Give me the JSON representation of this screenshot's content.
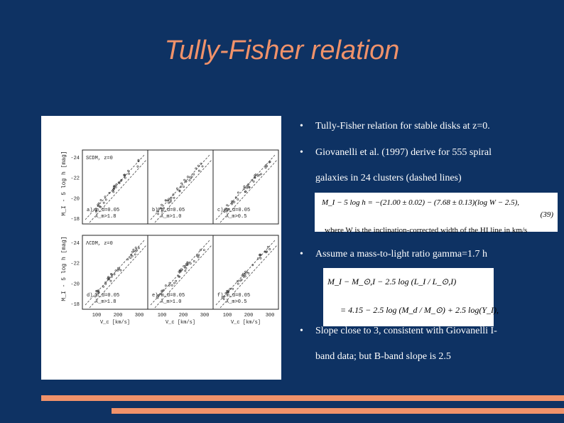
{
  "slide": {
    "title": "Tully-Fisher relation",
    "colors": {
      "background": "#0e3263",
      "accent": "#f0926a",
      "text": "#ffffff"
    }
  },
  "figure": {
    "ylabel_top": "M_I - 5 log h [mag]",
    "ylabel_bottom": "M_I - 5 log h [mag]",
    "row1_label": "SCDM, z=0",
    "row2_label": "ΛCDM, z=0",
    "yticks": [
      "-24",
      "-22",
      "-20",
      "-18"
    ],
    "xticks": [
      "100",
      "200",
      "300"
    ],
    "xlabel": "V_c [km/s]",
    "panels": [
      {
        "tag": "a)",
        "md": "m_d=0.05",
        "lam": "λ_m>1.8"
      },
      {
        "tag": "b)",
        "md": "m_d=0.05",
        "lam": "λ_m>1.0"
      },
      {
        "tag": "c)",
        "md": "m_d=0.05",
        "lam": "λ_m>0.5"
      },
      {
        "tag": "d)",
        "md": "m_d=0.05",
        "lam": "λ_m>1.8"
      },
      {
        "tag": "e)",
        "md": "m_d=0.05",
        "lam": "λ_m>1.0"
      },
      {
        "tag": "f)",
        "md": "m_d=0.05",
        "lam": "λ_m>0.5"
      }
    ]
  },
  "bullets": [
    {
      "lines": [
        "Tully-Fisher relation for stable disks at z=0."
      ]
    },
    {
      "lines": [
        "Giovanelli et al. (1997) derive for 555 spiral",
        "galaxies in 24 clusters (dashed lines)"
      ]
    },
    {
      "lines": [
        "Assume a mass-to-light ratio gamma=1.7 h"
      ]
    },
    {
      "lines": [
        "Slope close to 3, consistent with Giovanelli I-",
        "band data; but B-band slope is 2.5"
      ]
    }
  ],
  "equation1": {
    "text": "M_I − 5 log h = −(21.00 ± 0.02) − (7.68 ± 0.13)(log W − 2.5),",
    "number": "(39)",
    "cut": "where W is the inclination-corrected width of the HI line in km/s"
  },
  "equation2": {
    "line1": "M_I − M_⊙,I − 2.5 log (L_I / L_⊙,I)",
    "line2": "= 4.15 − 2.5 log (M_d / M_⊙) + 2.5 log(Υ_I),"
  }
}
